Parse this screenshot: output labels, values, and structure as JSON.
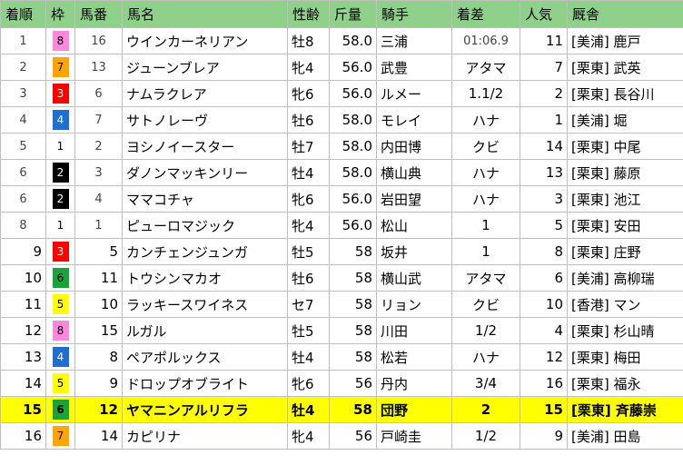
{
  "headers": [
    "着順",
    "枠",
    "馬番",
    "馬名",
    "性齢",
    "斤量",
    "騎手",
    "着差",
    "人気",
    "厩舎"
  ],
  "gate_colors": {
    "1": {
      "bg": "#ffffff",
      "fg": "#000000"
    },
    "2": {
      "bg": "#000000",
      "fg": "#ffffff"
    },
    "3": {
      "bg": "#ff0000",
      "fg": "#ffffff"
    },
    "4": {
      "bg": "#1e6fd0",
      "fg": "#ffffff"
    },
    "5": {
      "bg": "#ffff00",
      "fg": "#000000"
    },
    "6": {
      "bg": "#1aa33a",
      "fg": "#000000"
    },
    "7": {
      "bg": "#ffa500",
      "fg": "#000000"
    },
    "8": {
      "bg": "#ff88dd",
      "fg": "#000000"
    }
  },
  "highlight_color": "#ffff00",
  "rows": [
    {
      "pos": "1",
      "gate": "8",
      "num": "16",
      "name": "ウインカーネリアン",
      "sex_age": "牡8",
      "weight": "58.0",
      "jockey": "三浦",
      "margin": "01:06.9",
      "pop": "11",
      "stable": "[美浦] 鹿戸"
    },
    {
      "pos": "2",
      "gate": "7",
      "num": "13",
      "name": "ジューンブレア",
      "sex_age": "牝4",
      "weight": "56.0",
      "jockey": "武豊",
      "margin": "アタマ",
      "pop": "7",
      "stable": "[栗東] 武英"
    },
    {
      "pos": "3",
      "gate": "3",
      "num": "6",
      "name": "ナムラクレア",
      "sex_age": "牝6",
      "weight": "56.0",
      "jockey": "ルメー",
      "margin": "1.1/2",
      "pop": "2",
      "stable": "[栗東] 長谷川"
    },
    {
      "pos": "4",
      "gate": "4",
      "num": "7",
      "name": "サトノレーヴ",
      "sex_age": "牡6",
      "weight": "58.0",
      "jockey": "モレイ",
      "margin": "ハナ",
      "pop": "1",
      "stable": "[美浦] 堀"
    },
    {
      "pos": "5",
      "gate": "1",
      "num": "2",
      "name": "ヨシノイースター",
      "sex_age": "牡7",
      "weight": "58.0",
      "jockey": "内田博",
      "margin": "クビ",
      "pop": "14",
      "stable": "[栗東] 中尾"
    },
    {
      "pos": "6",
      "gate": "2",
      "num": "3",
      "name": "ダノンマッキンリー",
      "sex_age": "牡4",
      "weight": "58.0",
      "jockey": "横山典",
      "margin": "ハナ",
      "pop": "13",
      "stable": "[栗東] 藤原"
    },
    {
      "pos": "6",
      "gate": "2",
      "num": "4",
      "name": "ママコチャ",
      "sex_age": "牝6",
      "weight": "56.0",
      "jockey": "岩田望",
      "margin": "ハナ",
      "pop": "3",
      "stable": "[栗東] 池江"
    },
    {
      "pos": "8",
      "gate": "1",
      "num": "1",
      "name": "ピューロマジック",
      "sex_age": "牝4",
      "weight": "56.0",
      "jockey": "松山",
      "margin": "1",
      "pop": "5",
      "stable": "[栗東] 安田"
    },
    {
      "pos": "9",
      "gate": "3",
      "num": "5",
      "name": "カンチェンジュンガ",
      "sex_age": "牡5",
      "weight": "58",
      "jockey": "坂井",
      "margin": "1",
      "pop": "8",
      "stable": "[栗東] 庄野"
    },
    {
      "pos": "10",
      "gate": "6",
      "num": "11",
      "name": "トウシンマカオ",
      "sex_age": "牡6",
      "weight": "58",
      "jockey": "横山武",
      "margin": "アタマ",
      "pop": "6",
      "stable": "[美浦] 高柳瑞"
    },
    {
      "pos": "11",
      "gate": "5",
      "num": "10",
      "name": "ラッキースワイネス",
      "sex_age": "セ7",
      "weight": "58",
      "jockey": "リョン",
      "margin": "クビ",
      "pop": "10",
      "stable": "[香港] マン"
    },
    {
      "pos": "12",
      "gate": "8",
      "num": "15",
      "name": "ルガル",
      "sex_age": "牡5",
      "weight": "58",
      "jockey": "川田",
      "margin": "1/2",
      "pop": "4",
      "stable": "[栗東] 杉山晴"
    },
    {
      "pos": "13",
      "gate": "4",
      "num": "8",
      "name": "ペアポルックス",
      "sex_age": "牡4",
      "weight": "58",
      "jockey": "松若",
      "margin": "ハナ",
      "pop": "12",
      "stable": "[栗東] 梅田"
    },
    {
      "pos": "14",
      "gate": "5",
      "num": "9",
      "name": "ドロップオブライト",
      "sex_age": "牝6",
      "weight": "56",
      "jockey": "丹内",
      "margin": "3/4",
      "pop": "16",
      "stable": "[栗東] 福永"
    },
    {
      "pos": "15",
      "gate": "6",
      "num": "12",
      "name": "ヤマニンアルリフラ",
      "sex_age": "牡4",
      "weight": "58",
      "jockey": "団野",
      "margin": "2",
      "pop": "15",
      "stable": "[栗東] 斉藤崇",
      "highlight": true
    },
    {
      "pos": "16",
      "gate": "7",
      "num": "14",
      "name": "カピリナ",
      "sex_age": "牝4",
      "weight": "56",
      "jockey": "戸崎圭",
      "margin": "1/2",
      "pop": "9",
      "stable": "[美浦] 田島"
    }
  ]
}
